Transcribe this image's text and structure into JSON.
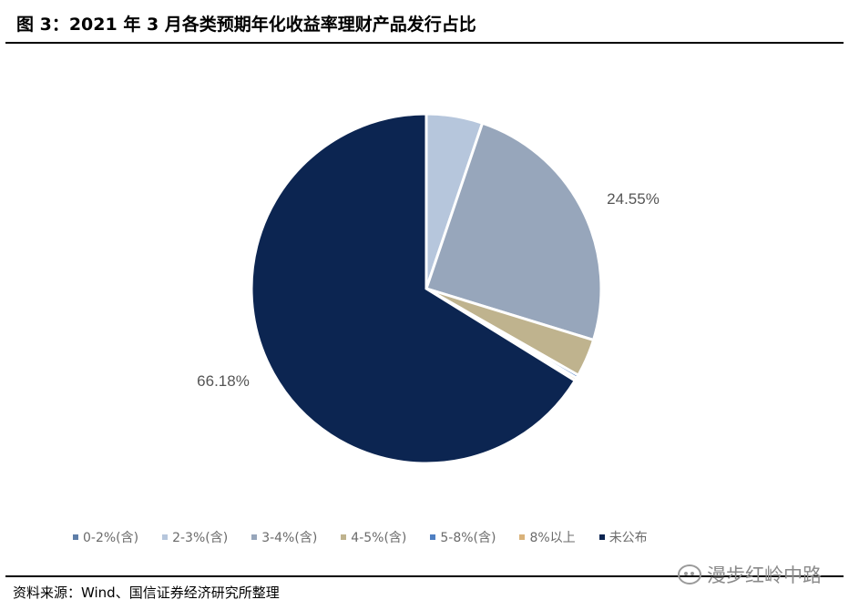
{
  "figure": {
    "title": "图 3：2021 年 3 月各类预期年化收益率理财产品发行占比",
    "source": "资料来源：Wind、国信证券经济研究所整理",
    "watermark": "漫步红岭中路"
  },
  "chart_data": {
    "type": "pie",
    "title": "",
    "start_angle_deg": 0,
    "direction": "clockwise",
    "legend_position": "bottom",
    "slices": [
      {
        "label": "0-2%(含)",
        "value": 0.0,
        "color": "#5e7ea8",
        "data_label": ""
      },
      {
        "label": "2-3%(含)",
        "value": 5.2,
        "color": "#b6c6dc",
        "data_label": ""
      },
      {
        "label": "3-4%(含)",
        "value": 24.55,
        "color": "#97a6bb",
        "data_label": "24.55%"
      },
      {
        "label": "4-5%(含)",
        "value": 3.5,
        "color": "#bfb38e",
        "data_label": ""
      },
      {
        "label": "5-8%(含)",
        "value": 0.3,
        "color": "#4f7fc2",
        "data_label": ""
      },
      {
        "label": "8%以上",
        "value": 0.27,
        "color": "#d9b27a",
        "data_label": ""
      },
      {
        "label": "未公布",
        "value": 66.18,
        "color": "#0c2551",
        "data_label": "66.18%"
      }
    ],
    "legend": [
      {
        "label": "0-2%(含)",
        "color": "#5e7ea8"
      },
      {
        "label": "2-3%(含)",
        "color": "#b6c6dc"
      },
      {
        "label": "3-4%(含)",
        "color": "#97a6bb"
      },
      {
        "label": "4-5%(含)",
        "color": "#bfb38e"
      },
      {
        "label": "5-8%(含)",
        "color": "#4f7fc2"
      },
      {
        "label": "8%以上",
        "color": "#d9b27a"
      },
      {
        "label": "未公布",
        "color": "#0c2551"
      }
    ]
  }
}
